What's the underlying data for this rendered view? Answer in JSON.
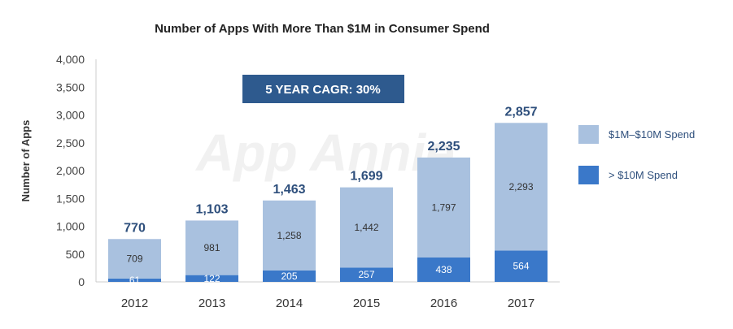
{
  "chart_data": {
    "type": "bar",
    "stacked": true,
    "title": "Number of Apps With More Than $1M in Consumer Spend",
    "ylabel": "Number of Apps",
    "xlabel": "",
    "ylim": [
      0,
      4000
    ],
    "yticks": [
      "0",
      "500",
      "1,000",
      "1,500",
      "2,000",
      "2,500",
      "3,000",
      "3,500",
      "4,000"
    ],
    "ytick_values": [
      0,
      500,
      1000,
      1500,
      2000,
      2500,
      3000,
      3500,
      4000
    ],
    "categories": [
      "2012",
      "2013",
      "2014",
      "2015",
      "2016",
      "2017"
    ],
    "series": [
      {
        "name": "> $10M Spend",
        "values": [
          61,
          122,
          205,
          257,
          438,
          564
        ],
        "labels": [
          "61",
          "122",
          "205",
          "257",
          "438",
          "564"
        ],
        "color": "#3a78c9"
      },
      {
        "name": "$1M–$10M Spend",
        "values": [
          709,
          981,
          1258,
          1442,
          1797,
          2293
        ],
        "labels": [
          "709",
          "981",
          "1,258",
          "1,442",
          "1,797",
          "2,293"
        ],
        "color": "#a9c1df"
      }
    ],
    "totals": [
      770,
      1103,
      1463,
      1699,
      2235,
      2857
    ],
    "total_labels": [
      "770",
      "1,103",
      "1,463",
      "1,699",
      "2,235",
      "2,857"
    ],
    "legend": {
      "position": "right"
    },
    "annotation": "5 YEAR CAGR: 30%",
    "watermark": "App Annie",
    "grid": false
  },
  "colors": {
    "annotation_box": "#2e5a8e",
    "total_text": "#2e4f7c",
    "axis": "#cccccc"
  }
}
